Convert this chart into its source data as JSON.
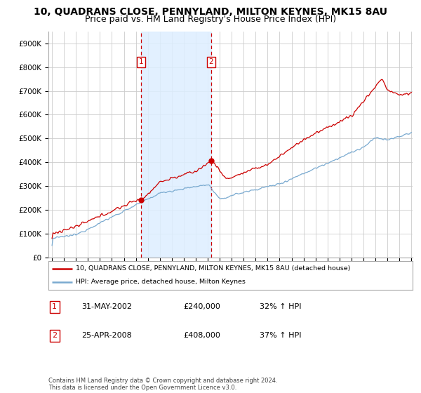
{
  "title": "10, QUADRANS CLOSE, PENNYLAND, MILTON KEYNES, MK15 8AU",
  "subtitle": "Price paid vs. HM Land Registry's House Price Index (HPI)",
  "legend_line1": "10, QUADRANS CLOSE, PENNYLAND, MILTON KEYNES, MK15 8AU (detached house)",
  "legend_line2": "HPI: Average price, detached house, Milton Keynes",
  "transaction1_date": "31-MAY-2002",
  "transaction1_price": "£240,000",
  "transaction1_hpi": "32% ↑ HPI",
  "transaction2_date": "25-APR-2008",
  "transaction2_price": "£408,000",
  "transaction2_hpi": "37% ↑ HPI",
  "footer": "Contains HM Land Registry data © Crown copyright and database right 2024.\nThis data is licensed under the Open Government Licence v3.0.",
  "ylim": [
    0,
    950000
  ],
  "yticks": [
    0,
    100000,
    200000,
    300000,
    400000,
    500000,
    600000,
    700000,
    800000,
    900000
  ],
  "ytick_labels": [
    "£0",
    "£100K",
    "£200K",
    "£300K",
    "£400K",
    "£500K",
    "£600K",
    "£700K",
    "£800K",
    "£900K"
  ],
  "year_start": 1995,
  "year_end": 2025,
  "transaction1_year": 2002.42,
  "transaction1_value": 240000,
  "transaction2_year": 2008.29,
  "transaction2_value": 408000,
  "vline1_year": 2002.42,
  "vline2_year": 2008.29,
  "red_color": "#cc0000",
  "blue_color": "#7aaad0",
  "vline_color": "#cc0000",
  "shade_color": "#ddeeff",
  "background_color": "#ffffff",
  "grid_color": "#cccccc",
  "title_fontsize": 10,
  "subtitle_fontsize": 9
}
